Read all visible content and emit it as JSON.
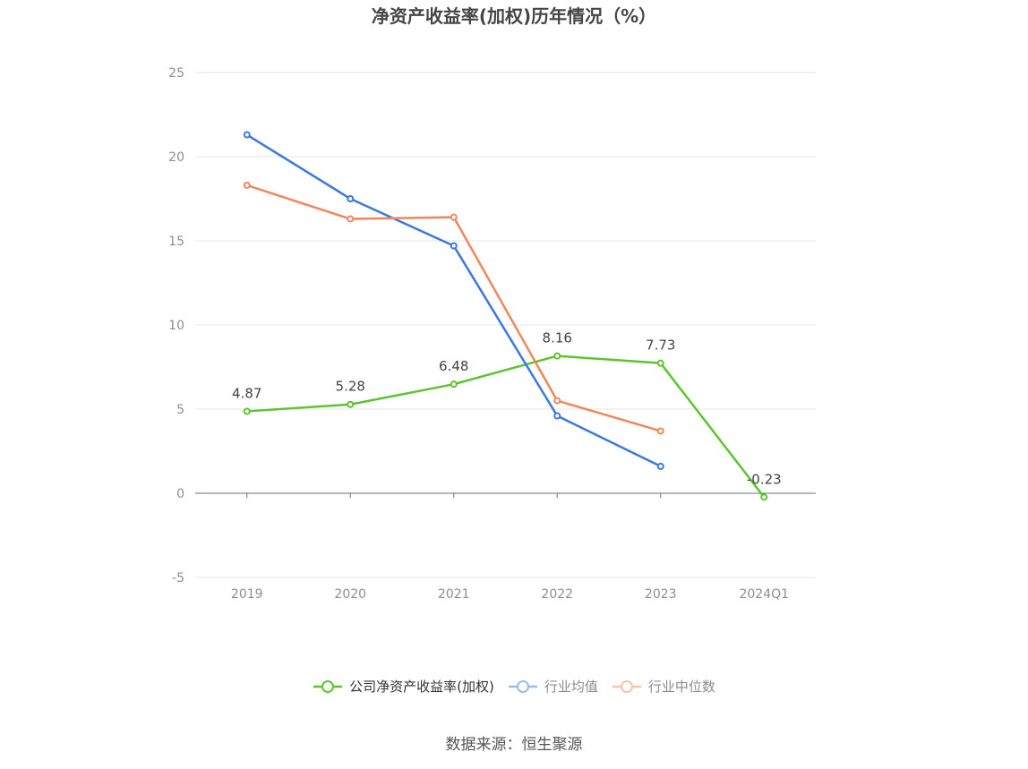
{
  "chart_data": {
    "type": "line",
    "title": "净资产收益率(加权)历年情况（%）",
    "categories": [
      "2019",
      "2020",
      "2021",
      "2022",
      "2023",
      "2024Q1"
    ],
    "series": [
      {
        "name": "公司净资产收益率(加权)",
        "values": [
          4.87,
          5.28,
          6.48,
          8.16,
          7.73,
          -0.23
        ],
        "color": "#5dc430",
        "data_labels": true
      },
      {
        "name": "行业均值",
        "values": [
          21.3,
          17.5,
          14.7,
          4.6,
          1.6,
          null
        ],
        "color": "#3b78e0",
        "data_labels": false
      },
      {
        "name": "行业中位数",
        "values": [
          18.3,
          16.3,
          16.4,
          5.5,
          3.7,
          null
        ],
        "color": "#f0875a",
        "data_labels": false
      }
    ],
    "ylim": [
      -5,
      25
    ],
    "yticks": [
      -5,
      0,
      5,
      10,
      15,
      20,
      25
    ],
    "grid": true,
    "legend_position": "bottom"
  },
  "source": "数据来源：恒生聚源"
}
